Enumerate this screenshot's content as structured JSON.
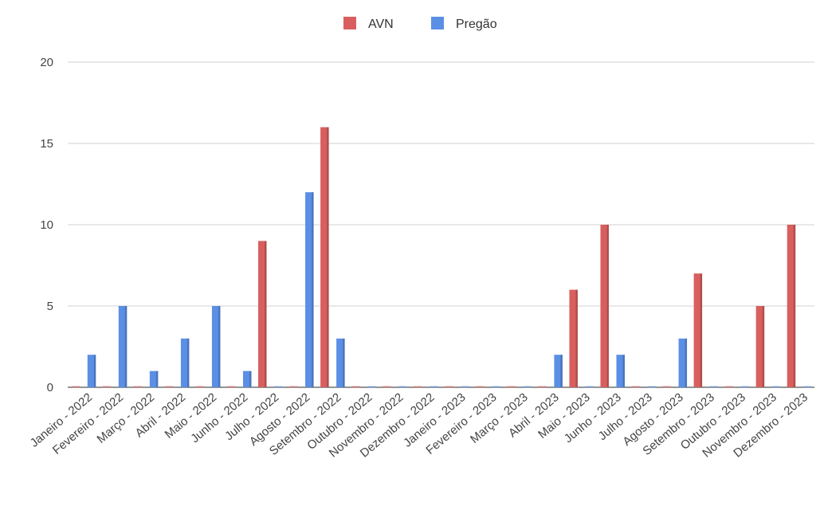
{
  "chart_data": {
    "type": "bar",
    "categories": [
      "Janeiro - 2022",
      "Fevereiro - 2022",
      "Março - 2022",
      "Abril - 2022",
      "Maio - 2022",
      "Junho - 2022",
      "Julho - 2022",
      "Agosto - 2022",
      "Setembro - 2022",
      "Outubro - 2022",
      "Novembro - 2022",
      "Dezembro - 2022",
      "Janeiro - 2023",
      "Fevereiro - 2023",
      "Março - 2023",
      "Abril - 2023",
      "Maio - 2023",
      "Junho - 2023",
      "Julho - 2023",
      "Agosto - 2023",
      "Setembro - 2023",
      "Outubro - 2023",
      "Novembro - 2023",
      "Dezembro - 2023"
    ],
    "series": [
      {
        "name": "AVN",
        "color": "#d95f5f",
        "values": [
          0,
          0,
          0,
          0,
          0,
          0,
          9,
          0,
          16,
          0,
          0,
          0,
          0,
          0,
          0,
          0,
          6,
          10,
          0,
          0,
          7,
          0,
          5,
          10
        ]
      },
      {
        "name": "Pregão",
        "color": "#5b8fe6",
        "values": [
          2,
          5,
          1,
          3,
          5,
          1,
          0,
          12,
          3,
          0,
          0,
          0,
          0,
          0,
          0,
          2,
          0,
          2,
          0,
          3,
          0,
          0,
          0,
          0
        ]
      }
    ],
    "yticks": [
      0,
      5,
      10,
      15,
      20
    ],
    "ylim": [
      0,
      20
    ],
    "grid": true,
    "legend": "top"
  }
}
